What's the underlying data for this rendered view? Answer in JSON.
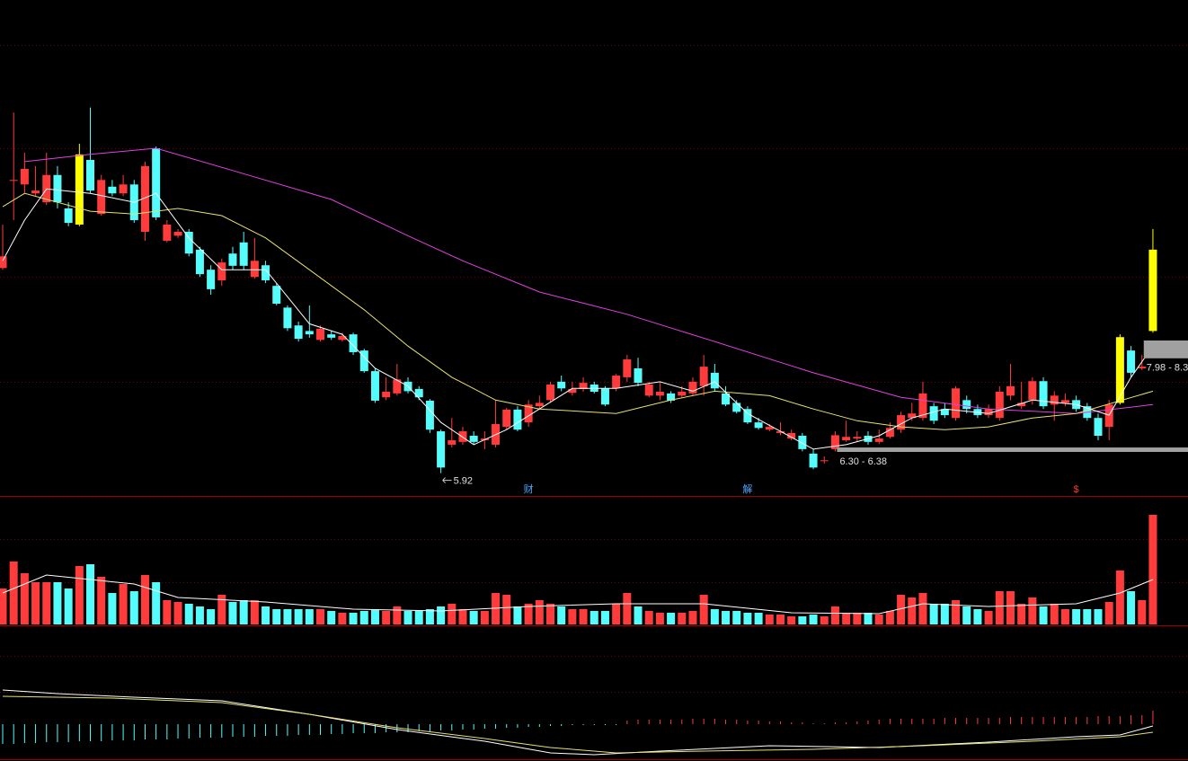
{
  "chart_data": [
    {
      "type": "candlestick",
      "open": [
        9.6,
        11.18,
        11.1,
        10.94,
        10.78,
        11.27,
        10.67,
        10.38,
        11.54,
        10.57,
        11.06,
        10.94,
        11.1,
        10.25,
        11.75,
        10.09,
        10.18,
        10.25,
        9.93,
        9.57,
        9.38,
        9.86,
        10.06,
        9.44,
        9.65,
        9.28,
        8.89,
        8.57,
        8.47,
        8.31,
        8.41,
        8.31,
        8.41,
        8.12,
        7.75,
        7.28,
        7.35,
        7.56,
        7.43,
        7.22,
        6.67,
        6.43,
        6.48,
        6.59,
        6.51,
        6.43,
        6.75,
        7.06,
        6.83,
        7.12,
        7.23,
        7.56,
        7.36,
        7.43,
        7.51,
        7.44,
        7.44,
        7.64,
        7.8,
        7.31,
        7.31,
        7.35,
        7.31,
        7.35,
        7.48,
        7.72,
        7.35,
        7.18,
        7.07,
        6.83,
        6.7,
        6.64,
        6.54,
        6.59,
        6.27,
        6.14,
        6.35,
        6.51,
        6.54,
        6.59,
        6.48,
        6.57,
        6.7,
        6.91,
        6.91,
        7.12,
        7.07,
        6.91,
        7.23,
        7.07,
        6.96,
        6.91,
        7.31,
        7.12,
        7.23,
        7.57,
        7.15,
        7.18,
        7.23,
        7.12,
        6.91,
        6.75,
        7.18,
        8.12,
        7.8,
        8.47
      ],
      "high": [
        10.38,
        12.39,
        11.67,
        11.43,
        11.67,
        11.43,
        10.78,
        11.83,
        12.48,
        11.27,
        11.18,
        11.27,
        11.18,
        11.51,
        11.78,
        10.46,
        10.3,
        10.3,
        9.98,
        9.65,
        9.77,
        9.98,
        10.25,
        10.14,
        9.73,
        9.33,
        8.93,
        8.64,
        8.93,
        8.57,
        8.47,
        8.44,
        8.44,
        8.15,
        7.8,
        7.64,
        7.88,
        7.64,
        7.48,
        7.25,
        6.7,
        6.91,
        6.75,
        6.67,
        6.67,
        7.23,
        7.09,
        7.12,
        7.23,
        7.31,
        7.56,
        7.67,
        7.56,
        7.64,
        7.56,
        7.48,
        7.7,
        8.04,
        7.99,
        7.56,
        7.56,
        7.39,
        7.48,
        7.64,
        8.04,
        7.88,
        7.48,
        7.23,
        7.12,
        6.91,
        6.8,
        6.83,
        6.7,
        6.64,
        6.35,
        6.22,
        6.67,
        6.86,
        6.67,
        6.67,
        6.7,
        6.83,
        7.02,
        7.18,
        7.56,
        7.18,
        7.18,
        7.48,
        7.31,
        7.15,
        7.15,
        7.48,
        7.88,
        7.56,
        7.64,
        7.64,
        7.39,
        7.35,
        7.31,
        7.18,
        6.99,
        7.23,
        8.41,
        8.2,
        8.04,
        10.3
      ],
      "low": [
        9.57,
        10.46,
        10.94,
        10.89,
        10.73,
        10.67,
        10.35,
        10.35,
        10.94,
        10.54,
        10.89,
        10.89,
        10.41,
        10.09,
        10.46,
        10.06,
        10.14,
        9.81,
        9.44,
        9.12,
        9.28,
        9.57,
        9.57,
        9.41,
        9.33,
        8.93,
        8.47,
        8.28,
        8.35,
        8.28,
        8.31,
        8.28,
        8.04,
        7.72,
        7.18,
        7.23,
        7.31,
        7.35,
        7.23,
        6.64,
        5.92,
        6.38,
        6.43,
        6.43,
        6.35,
        6.38,
        6.7,
        6.67,
        6.75,
        7.07,
        7.18,
        7.39,
        7.31,
        7.38,
        7.35,
        7.12,
        7.39,
        7.56,
        7.48,
        7.28,
        7.23,
        7.18,
        7.28,
        7.31,
        7.31,
        7.39,
        7.12,
        6.99,
        6.8,
        6.7,
        6.67,
        6.6,
        6.51,
        6.31,
        5.99,
        6.09,
        6.31,
        6.48,
        6.48,
        6.43,
        6.44,
        6.54,
        6.64,
        6.86,
        6.86,
        6.8,
        6.91,
        6.86,
        6.99,
        6.91,
        6.91,
        6.86,
        7.23,
        7.07,
        7.15,
        7.07,
        6.86,
        7.12,
        7.02,
        6.86,
        6.51,
        6.51,
        7.15,
        7.64,
        7.77,
        8.44
      ],
      "close": [
        9.81,
        11.18,
        11.38,
        10.99,
        11.27,
        10.78,
        10.41,
        11.64,
        10.99,
        11.18,
        10.94,
        11.1,
        10.46,
        11.43,
        10.51,
        10.38,
        10.25,
        9.86,
        9.49,
        9.22,
        9.7,
        9.64,
        9.64,
        9.73,
        9.38,
        8.96,
        8.52,
        8.33,
        8.41,
        8.51,
        8.35,
        8.38,
        8.09,
        7.75,
        7.22,
        7.38,
        7.6,
        7.39,
        7.28,
        6.7,
        6.02,
        6.51,
        6.67,
        6.48,
        6.54,
        6.8,
        7.06,
        6.7,
        7.15,
        7.18,
        7.51,
        7.44,
        7.43,
        7.54,
        7.38,
        7.15,
        7.67,
        7.96,
        7.54,
        7.51,
        7.38,
        7.22,
        7.38,
        7.56,
        7.83,
        7.44,
        7.15,
        7.02,
        6.83,
        6.73,
        6.75,
        6.67,
        6.64,
        6.35,
        6.02,
        6.15,
        6.6,
        6.57,
        6.57,
        6.48,
        6.54,
        6.73,
        6.96,
        6.99,
        7.35,
        6.86,
        6.96,
        7.44,
        7.07,
        6.96,
        7.07,
        7.38,
        7.48,
        7.18,
        7.57,
        7.12,
        7.31,
        7.23,
        7.07,
        6.91,
        6.59,
        7.15,
        8.36,
        7.72,
        7.83,
        9.93
      ],
      "up_color": "#ff3b3b",
      "down_color": "#54fcfc",
      "highlight": [
        7,
        102,
        105
      ],
      "highlight_color": "#ffff00",
      "ylim": [
        5.51,
        14.41
      ],
      "lines": [
        {
          "color": "#e040e0",
          "x": [
            2,
            8,
            14,
            21,
            30,
            37,
            42,
            49,
            57,
            65,
            74,
            82,
            90,
            98,
            105
          ],
          "values": [
            11.51,
            11.64,
            11.75,
            11.35,
            10.83,
            10.18,
            9.73,
            9.17,
            8.77,
            8.28,
            7.72,
            7.28,
            7.07,
            6.99,
            7.15
          ]
        },
        {
          "color": "#e8e070",
          "x": [
            0,
            2,
            8,
            12,
            16,
            20,
            24,
            28,
            33,
            37,
            41,
            45,
            49,
            56,
            61,
            65,
            70,
            74,
            78,
            82,
            86,
            90,
            94,
            98,
            105
          ],
          "values": [
            10.7,
            10.94,
            10.62,
            10.57,
            10.67,
            10.54,
            10.14,
            9.57,
            8.85,
            8.2,
            7.64,
            7.23,
            7.07,
            6.99,
            7.23,
            7.39,
            7.31,
            7.07,
            6.86,
            6.75,
            6.7,
            6.75,
            6.91,
            6.99,
            7.39
          ]
        },
        {
          "color": "#ffffff",
          "x": [
            0,
            2,
            4,
            8,
            12,
            14,
            17,
            20,
            24,
            28,
            31,
            34,
            37,
            40,
            43,
            46,
            49,
            52,
            56,
            60,
            63,
            65,
            68,
            71,
            74,
            77,
            80,
            83,
            86,
            90,
            94,
            98,
            101,
            103,
            105
          ],
          "values": [
            9.73,
            10.46,
            11.02,
            10.94,
            10.78,
            10.94,
            10.14,
            9.57,
            9.57,
            8.6,
            8.41,
            7.8,
            7.48,
            6.83,
            6.43,
            6.7,
            7.07,
            7.44,
            7.44,
            7.56,
            7.39,
            7.56,
            6.99,
            6.67,
            6.35,
            6.43,
            6.59,
            6.91,
            7.07,
            6.99,
            7.23,
            7.15,
            6.96,
            7.64,
            8.2
          ]
        }
      ],
      "annotations": [
        {
          "text": "5.92",
          "x": 40
        }
      ],
      "bands": [
        {
          "label": "6.30 - 6.38",
          "low": 6.3,
          "high": 6.38,
          "start": 76
        },
        {
          "label": "7.98 - 8.3",
          "low": 7.98,
          "high": 8.3,
          "start": 104
        }
      ],
      "markers": [
        {
          "text": "财",
          "x": 48,
          "color": "#4aa8ff"
        },
        {
          "text": "解",
          "x": 68,
          "color": "#4aa8ff"
        },
        {
          "text": "$",
          "x": 98,
          "color": "#ff3030"
        }
      ]
    },
    {
      "type": "volume",
      "values": [
        40,
        70,
        57,
        47,
        47,
        47,
        40,
        65,
        67,
        53,
        35,
        45,
        37,
        55,
        47,
        27,
        25,
        23,
        20,
        17,
        33,
        25,
        27,
        27,
        20,
        17,
        17,
        17,
        17,
        17,
        15,
        13,
        13,
        15,
        17,
        15,
        20,
        15,
        15,
        17,
        20,
        23,
        17,
        15,
        15,
        35,
        33,
        20,
        23,
        27,
        23,
        20,
        17,
        17,
        15,
        15,
        23,
        35,
        20,
        15,
        13,
        13,
        13,
        15,
        33,
        17,
        15,
        15,
        13,
        13,
        11,
        11,
        9,
        9,
        11,
        9,
        20,
        13,
        13,
        13,
        11,
        15,
        33,
        30,
        35,
        23,
        23,
        27,
        20,
        17,
        15,
        37,
        37,
        23,
        30,
        20,
        23,
        17,
        17,
        17,
        17,
        25,
        60,
        37,
        27,
        122
      ],
      "ylim": [
        0,
        142
      ],
      "line": {
        "color": "#ffffff",
        "x": [
          0,
          4,
          8,
          12,
          16,
          24,
          32,
          40,
          48,
          56,
          64,
          72,
          80,
          84,
          90,
          98,
          102,
          105
        ],
        "values": [
          35,
          55,
          50,
          45,
          30,
          25,
          17,
          15,
          20,
          23,
          23,
          13,
          12,
          23,
          20,
          23,
          35,
          50
        ]
      }
    },
    {
      "type": "macd",
      "histogram": [
        -22,
        -22,
        -21,
        -21,
        -20,
        -20,
        -20,
        -19,
        -19,
        -19,
        -18,
        -18,
        -18,
        -17,
        -17,
        -17,
        -16,
        -16,
        -15,
        -15,
        -15,
        -14,
        -14,
        -14,
        -13,
        -13,
        -13,
        -12,
        -12,
        -12,
        -11,
        -11,
        -10,
        -10,
        -10,
        -9,
        -9,
        -9,
        -8,
        -8,
        -7,
        -7,
        -6,
        -6,
        -5,
        -5,
        -4,
        -4,
        -3,
        -3,
        -2,
        -2,
        -1,
        -1,
        -1,
        -1,
        -1,
        4,
        5,
        5,
        5,
        5,
        5,
        6,
        6,
        6,
        5,
        5,
        4,
        4,
        3,
        3,
        2,
        2,
        1,
        1,
        2,
        2,
        3,
        4,
        5,
        6,
        6,
        6,
        6,
        6,
        7,
        7,
        7,
        7,
        7,
        7,
        8,
        8,
        8,
        8,
        8,
        8,
        8,
        8,
        9,
        9,
        9,
        10,
        10,
        15
      ],
      "pos_color": "#ff3b3b",
      "neg_color": "#54fcfc",
      "ylim": [
        -41,
        109
      ],
      "dif": {
        "color": "#ffffff",
        "x": [
          0,
          5,
          12,
          20,
          28,
          36,
          44,
          50,
          54,
          60,
          70,
          80,
          90,
          98,
          102,
          105
        ],
        "values": [
          38,
          34,
          30,
          26,
          11,
          -6,
          -19,
          -32,
          -34,
          -30,
          -24,
          -26,
          -20,
          -14,
          -12,
          -2
        ]
      },
      "dea": {
        "color": "#e8e070",
        "x": [
          0,
          10,
          20,
          28,
          36,
          44,
          50,
          56,
          64,
          74,
          84,
          94,
          102,
          105
        ],
        "values": [
          31,
          29,
          24,
          11,
          -4,
          -16,
          -26,
          -32,
          -30,
          -28,
          -24,
          -19,
          -14,
          -9
        ]
      }
    }
  ]
}
